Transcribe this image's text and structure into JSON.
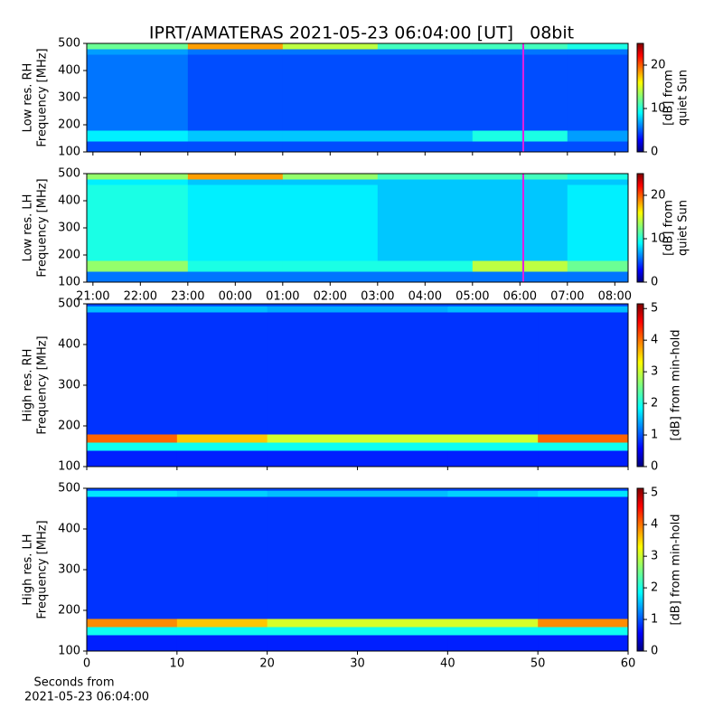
{
  "chart_data": [
    {
      "type": "heatmap",
      "title": "IPRT/AMATERAS 2021-05-23 06:04:00 [UT]   08bit",
      "ylabel": [
        "Low res. RH",
        "Frequency [MHz]"
      ],
      "clabel": [
        "[dB] from",
        "quiet Sun"
      ],
      "x": [
        20.87,
        23,
        25,
        27,
        29,
        31,
        32.28
      ],
      "y": [
        100,
        140,
        180,
        460,
        480,
        500
      ],
      "z": [
        [
          5,
          5,
          5,
          5,
          5,
          5
        ],
        [
          9,
          8,
          8,
          8,
          10,
          7
        ],
        [
          6,
          5,
          5,
          5,
          5,
          5
        ],
        [
          7,
          6,
          6,
          6,
          6,
          6
        ],
        [
          12,
          18,
          14,
          11,
          11,
          10
        ]
      ],
      "xlim": [
        20.87,
        32.28
      ],
      "ylim": [
        100,
        500
      ],
      "yticks": [
        100,
        200,
        300,
        400,
        500
      ],
      "xticks": [
        21,
        22,
        23,
        24,
        25,
        26,
        27,
        28,
        29,
        30,
        31,
        32
      ],
      "clim": [
        0,
        25
      ],
      "cticks": [
        0,
        10,
        20
      ],
      "cursor": 30.07,
      "cursor_color": "#e020e0",
      "colormap": "jet"
    },
    {
      "type": "heatmap",
      "ylabel": [
        "Low res. LH",
        "Frequency [MHz]"
      ],
      "clabel": [
        "[dB] from",
        "quiet Sun"
      ],
      "x": [
        20.87,
        23,
        25,
        27,
        29,
        31,
        32.28
      ],
      "y": [
        100,
        140,
        180,
        460,
        480,
        500
      ],
      "z": [
        [
          6,
          6,
          6,
          6,
          6,
          6
        ],
        [
          13,
          10,
          10,
          10,
          14,
          12
        ],
        [
          10,
          9,
          9,
          8,
          8,
          9
        ],
        [
          9,
          8,
          8,
          8,
          8,
          8
        ],
        [
          13,
          18,
          13,
          11,
          11,
          10
        ]
      ],
      "xlim": [
        20.87,
        32.28
      ],
      "ylim": [
        100,
        500
      ],
      "yticks": [
        100,
        200,
        300,
        400,
        500
      ],
      "xticks": [
        {
          "value": 21,
          "label": "21:00"
        },
        {
          "value": 22,
          "label": "22:00"
        },
        {
          "value": 23,
          "label": "23:00"
        },
        {
          "value": 24,
          "label": "00:00"
        },
        {
          "value": 25,
          "label": "01:00"
        },
        {
          "value": 26,
          "label": "02:00"
        },
        {
          "value": 27,
          "label": "03:00"
        },
        {
          "value": 28,
          "label": "04:00"
        },
        {
          "value": 29,
          "label": "05:00"
        },
        {
          "value": 30,
          "label": "06:00"
        },
        {
          "value": 31,
          "label": "07:00"
        },
        {
          "value": 32,
          "label": "08:00"
        }
      ],
      "clim": [
        0,
        25
      ],
      "cticks": [
        0,
        10,
        20
      ],
      "cursor": 30.07,
      "cursor_color": "#e020e0",
      "colormap": "jet"
    },
    {
      "type": "heatmap",
      "ylabel": [
        "High res. RH",
        "Frequency [MHz]"
      ],
      "clabel": [
        "[dB] from min-hold"
      ],
      "x": [
        0,
        10,
        20,
        30,
        40,
        50,
        60
      ],
      "y": [
        100,
        140,
        160,
        180,
        480,
        495,
        500
      ],
      "z": [
        [
          0.8,
          0.8,
          0.8,
          0.8,
          0.8,
          0.8
        ],
        [
          2,
          2,
          2,
          2,
          2,
          2
        ],
        [
          4,
          3.5,
          3,
          3,
          3,
          4
        ],
        [
          0.9,
          0.9,
          0.9,
          0.9,
          0.9,
          0.9
        ],
        [
          1.6,
          1.6,
          1.5,
          1.5,
          1.6,
          1.6
        ],
        [
          1,
          1,
          1,
          1,
          1,
          1
        ]
      ],
      "xlim": [
        0,
        60
      ],
      "ylim": [
        100,
        500
      ],
      "yticks": [
        100,
        200,
        300,
        400,
        500
      ],
      "xticks": [
        0,
        10,
        20,
        30,
        40,
        50,
        60
      ],
      "clim": [
        0,
        5.15
      ],
      "cticks": [
        0,
        1,
        2,
        3,
        4,
        5
      ],
      "colormap": "jet"
    },
    {
      "type": "heatmap",
      "ylabel": [
        "High res. LH",
        "Frequency [MHz]"
      ],
      "clabel": [
        "[dB] from min-hold"
      ],
      "xlabel": [
        "Seconds from",
        "2021-05-23 06:04:00"
      ],
      "x": [
        0,
        10,
        20,
        30,
        40,
        50,
        60
      ],
      "y": [
        100,
        140,
        160,
        180,
        480,
        495,
        500
      ],
      "z": [
        [
          0.8,
          0.8,
          0.8,
          0.8,
          0.8,
          0.8
        ],
        [
          2,
          2,
          2,
          2,
          2,
          2
        ],
        [
          3.8,
          3.5,
          3,
          3,
          3,
          3.8
        ],
        [
          0.9,
          0.9,
          0.9,
          0.9,
          0.9,
          0.9
        ],
        [
          1.8,
          1.7,
          1.6,
          1.6,
          1.7,
          1.8
        ],
        [
          1,
          1,
          1,
          1,
          1,
          1
        ]
      ],
      "xlim": [
        0,
        60
      ],
      "ylim": [
        100,
        500
      ],
      "yticks": [
        100,
        200,
        300,
        400,
        500
      ],
      "xticks": [
        0,
        10,
        20,
        30,
        40,
        50,
        60
      ],
      "clim": [
        0,
        5.15
      ],
      "cticks": [
        0,
        1,
        2,
        3,
        4,
        5
      ],
      "colormap": "jet"
    }
  ]
}
